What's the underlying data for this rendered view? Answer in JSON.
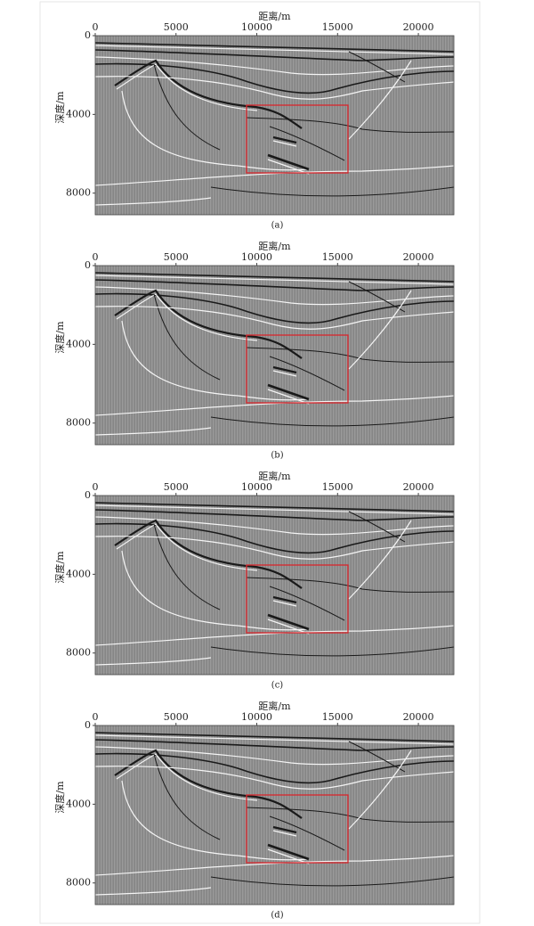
{
  "chart_data": [
    {
      "type": "seismic",
      "x_label": "距离/m",
      "y_label": "深度/m",
      "caption": "(a)",
      "xlim": [
        0,
        22200
      ],
      "ylim": [
        9100,
        0
      ],
      "xticks": [
        0,
        5000,
        10000,
        15000,
        20000
      ],
      "yticks": [
        0,
        4000,
        8000
      ]
    },
    {
      "type": "seismic",
      "x_label": "距离/m",
      "y_label": "深度/m",
      "caption": "(b)",
      "xlim": [
        0,
        22200
      ],
      "ylim": [
        9100,
        0
      ],
      "xticks": [
        0,
        5000,
        10000,
        15000,
        20000
      ],
      "yticks": [
        0,
        4000,
        8000
      ]
    },
    {
      "type": "seismic",
      "x_label": "距离/m",
      "y_label": "深度/m",
      "caption": "(c)",
      "xlim": [
        0,
        22200
      ],
      "ylim": [
        9100,
        0
      ],
      "xticks": [
        0,
        5000,
        10000,
        15000,
        20000
      ],
      "yticks": [
        0,
        4000,
        8000
      ]
    },
    {
      "type": "seismic",
      "x_label": "距离/m",
      "y_label": "深度/m",
      "caption": "(d)",
      "xlim": [
        0,
        22200
      ],
      "ylim": [
        9100,
        0
      ],
      "xticks": [
        0,
        5000,
        10000,
        15000,
        20000
      ],
      "yticks": [
        0,
        4000,
        8000
      ]
    }
  ]
}
